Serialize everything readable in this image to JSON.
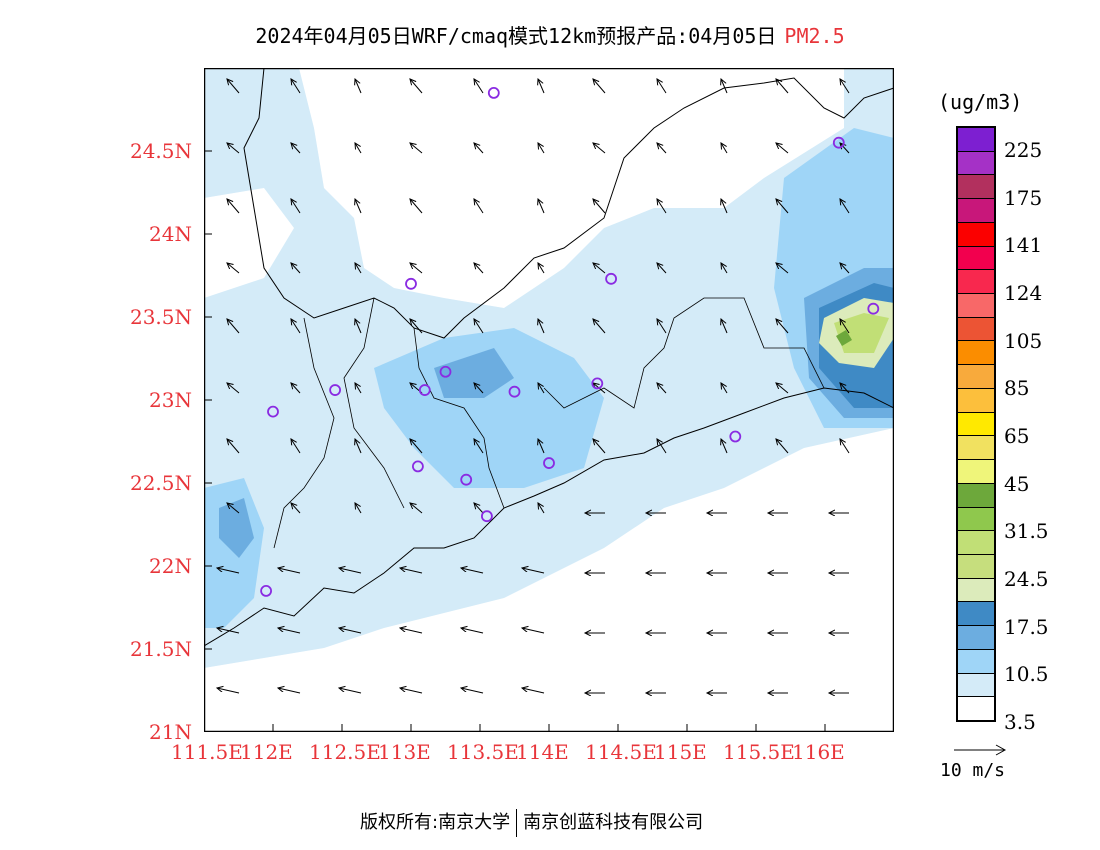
{
  "title": {
    "main": "2024年04月05日WRF/cmaq模式12km预报产品:04月05日",
    "variable": "PM2.5"
  },
  "colorbar": {
    "unit": "(ug/m3)",
    "labels": [
      "225",
      "175",
      "141",
      "124",
      "105",
      "85",
      "65",
      "45",
      "31.5",
      "24.5",
      "17.5",
      "10.5",
      "3.5"
    ],
    "colors": [
      "#7d1fd1",
      "#a531c6",
      "#b2305e",
      "#c8177a",
      "#fb0000",
      "#f2004e",
      "#f8284e",
      "#f86868",
      "#ec5434",
      "#fb8d00",
      "#f8aa3c",
      "#fcbf3c",
      "#ffe900",
      "#f1e160",
      "#eff57a",
      "#6da83b",
      "#8fc84d",
      "#c1df76",
      "#c6de7d",
      "#dcebbb",
      "#3f8ac5",
      "#6cade0",
      "#9fd5f7",
      "#d4ebf8",
      "#ffffff"
    ]
  },
  "wind_reference": {
    "label": "10 m/s"
  },
  "footer": {
    "left": "版权所有:南京大学",
    "right": "南京创蓝科技有限公司"
  },
  "map": {
    "lon_labels": [
      "111.5E",
      "112E",
      "112.5E",
      "113E",
      "113.5E",
      "114E",
      "114.5E",
      "115E",
      "115.5E",
      "116E"
    ],
    "lat_labels": [
      "24.5N",
      "24N",
      "23.5N",
      "23N",
      "22.5N",
      "22N",
      "21.5N",
      "21N"
    ],
    "lon_range": [
      111.5,
      116.5
    ],
    "lat_range": [
      21.0,
      25.0
    ],
    "stations": [
      {
        "lon": 113.6,
        "lat": 24.85
      },
      {
        "lon": 116.1,
        "lat": 24.55
      },
      {
        "lon": 113.0,
        "lat": 23.7
      },
      {
        "lon": 114.45,
        "lat": 23.73
      },
      {
        "lon": 116.35,
        "lat": 23.55
      },
      {
        "lon": 113.25,
        "lat": 23.17
      },
      {
        "lon": 112.45,
        "lat": 23.06
      },
      {
        "lon": 113.1,
        "lat": 23.06
      },
      {
        "lon": 113.75,
        "lat": 23.05
      },
      {
        "lon": 114.35,
        "lat": 23.1
      },
      {
        "lon": 112.0,
        "lat": 22.93
      },
      {
        "lon": 115.35,
        "lat": 22.78
      },
      {
        "lon": 113.05,
        "lat": 22.6
      },
      {
        "lon": 113.4,
        "lat": 22.52
      },
      {
        "lon": 114.0,
        "lat": 22.62
      },
      {
        "lon": 113.55,
        "lat": 22.3
      },
      {
        "lon": 111.95,
        "lat": 21.85
      }
    ]
  }
}
